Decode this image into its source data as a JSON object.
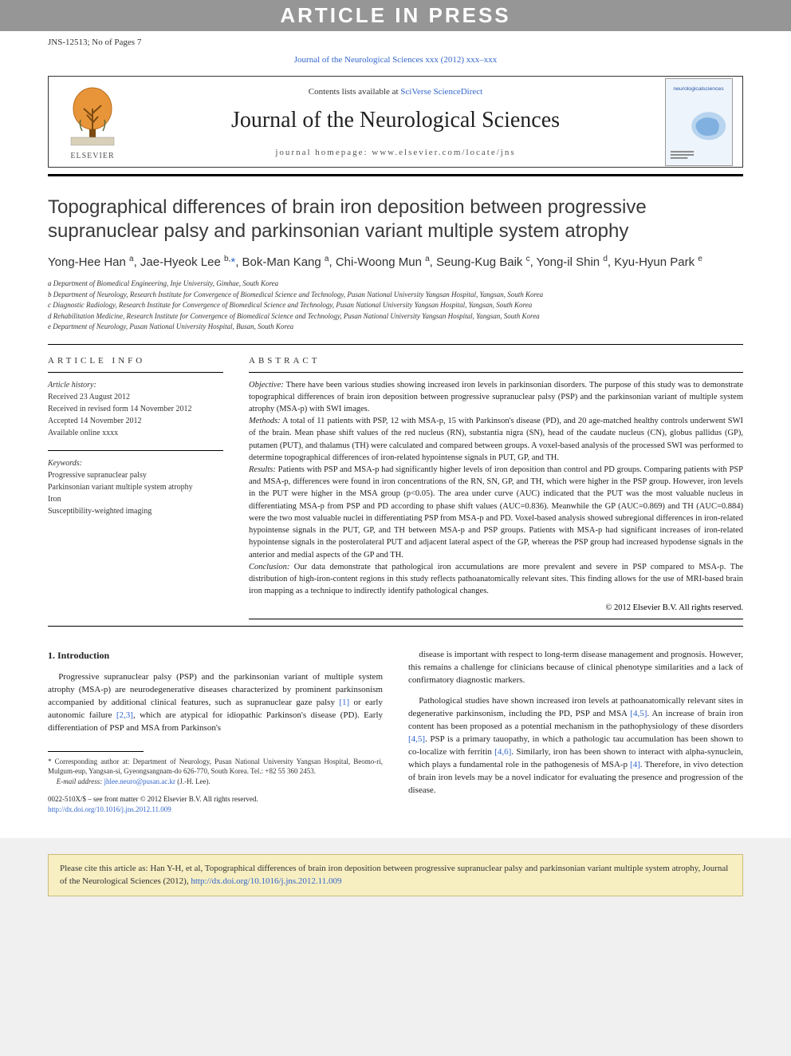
{
  "banner": "ARTICLE IN PRESS",
  "refline": {
    "left": "JNS-12513; No of Pages 7"
  },
  "journal_ref": "Journal of the Neurological Sciences xxx (2012) xxx–xxx",
  "masthead": {
    "publisher": "ELSEVIER",
    "contents_prefix": "Contents lists available at ",
    "contents_link": "SciVerse ScienceDirect",
    "journal_title": "Journal of the Neurological Sciences",
    "homepage": "journal homepage: www.elsevier.com/locate/jns",
    "logo_colors": {
      "tree_fill": "#e8953a",
      "tree_stroke": "#b86a1a",
      "banner": "#d8d0b8"
    },
    "cover_colors": {
      "bg": "#eef4fb",
      "accent": "#7fb0e0",
      "title_color": "#2a5aa8"
    },
    "cover_title": "neurologicalsciences"
  },
  "article": {
    "title": "Topographical differences of brain iron deposition between progressive supranuclear palsy and parkinsonian variant multiple system atrophy",
    "authors_html": "Yong-Hee Han <sup>a</sup>, Jae-Hyeok Lee <sup>b,</sup><span class='star'>*</span>, Bok-Man Kang <sup>a</sup>, Chi-Woong Mun <sup>a</sup>, Seung-Kug Baik <sup>c</sup>, Yong-il Shin <sup>d</sup>, Kyu-Hyun Park <sup>e</sup>",
    "affiliations": [
      "a Department of Biomedical Engineering, Inje University, Gimhae, South Korea",
      "b Department of Neurology, Research Institute for Convergence of Biomedical Science and Technology, Pusan National University Yangsan Hospital, Yangsan, South Korea",
      "c Diagnostic Radiology, Research Institute for Convergence of Biomedical Science and Technology, Pusan National University Yangsan Hospital, Yangsan, South Korea",
      "d Rehabilitation Medicine, Research Institute for Convergence of Biomedical Science and Technology, Pusan National University Yangsan Hospital, Yangsan, South Korea",
      "e Department of Neurology, Pusan National University Hospital, Busan, South Korea"
    ]
  },
  "info": {
    "head": "ARTICLE INFO",
    "history_label": "Article history:",
    "history": [
      "Received 23 August 2012",
      "Received in revised form 14 November 2012",
      "Accepted 14 November 2012",
      "Available online xxxx"
    ],
    "keywords_label": "Keywords:",
    "keywords": [
      "Progressive supranuclear palsy",
      "Parkinsonian variant multiple system atrophy",
      "Iron",
      "Susceptibility-weighted imaging"
    ]
  },
  "abstract": {
    "head": "ABSTRACT",
    "objective_label": "Objective:",
    "objective": " There have been various studies showing increased iron levels in parkinsonian disorders. The purpose of this study was to demonstrate topographical differences of brain iron deposition between progressive supranuclear palsy (PSP) and the parkinsonian variant of multiple system atrophy (MSA-p) with SWI images.",
    "methods_label": "Methods:",
    "methods": " A total of 11 patients with PSP, 12 with MSA-p, 15 with Parkinson's disease (PD), and 20 age-matched healthy controls underwent SWI of the brain. Mean phase shift values of the red nucleus (RN), substantia nigra (SN), head of the caudate nucleus (CN), globus pallidus (GP), putamen (PUT), and thalamus (TH) were calculated and compared between groups. A voxel-based analysis of the processed SWI was performed to determine topographical differences of iron-related hypointense signals in PUT, GP, and TH.",
    "results_label": "Results:",
    "results": " Patients with PSP and MSA-p had significantly higher levels of iron deposition than control and PD groups. Comparing patients with PSP and MSA-p, differences were found in iron concentrations of the RN, SN, GP, and TH, which were higher in the PSP group. However, iron levels in the PUT were higher in the MSA group (p<0.05). The area under curve (AUC) indicated that the PUT was the most valuable nucleus in differentiating MSA-p from PSP and PD according to phase shift values (AUC=0.836). Meanwhile the GP (AUC=0.869) and TH (AUC=0.884) were the two most valuable nuclei in differentiating PSP from MSA-p and PD. Voxel-based analysis showed subregional differences in iron-related hypointense signals in the PUT, GP, and TH between MSA-p and PSP groups. Patients with MSA-p had significant increases of iron-related hypointense signals in the posterolateral PUT and adjacent lateral aspect of the GP, whereas the PSP group had increased hypodense signals in the anterior and medial aspects of the GP and TH.",
    "conclusion_label": "Conclusion:",
    "conclusion": " Our data demonstrate that pathological iron accumulations are more prevalent and severe in PSP compared to MSA-p. The distribution of high-iron-content regions in this study reflects pathoanatomically relevant sites. This finding allows for the use of MRI-based brain iron mapping as a technique to indirectly identify pathological changes.",
    "copyright": "© 2012 Elsevier B.V. All rights reserved."
  },
  "body": {
    "intro_head": "1. Introduction",
    "left_p1_a": "Progressive supranuclear palsy (PSP) and the parkinsonian variant of multiple system atrophy (MSA-p) are neurodegenerative diseases characterized by prominent parkinsonism accompanied by additional clinical features, such as supranuclear gaze palsy ",
    "left_cite1": "[1]",
    "left_p1_b": " or early autonomic failure ",
    "left_cite2": "[2,3]",
    "left_p1_c": ", which are atypical for idiopathic Parkinson's disease (PD). Early differentiation of PSP and MSA from Parkinson's",
    "right_p1": "disease is important with respect to long-term disease management and prognosis. However, this remains a challenge for clinicians because of clinical phenotype similarities and a lack of confirmatory diagnostic markers.",
    "right_p2_a": "Pathological studies have shown increased iron levels at pathoanatomically relevant sites in degenerative parkinsonism, including the PD, PSP and MSA ",
    "right_cite3": "[4,5]",
    "right_p2_b": ". An increase of brain iron content has been proposed as a potential mechanism in the pathophysiology of these disorders ",
    "right_cite4": "[4,5]",
    "right_p2_c": ". PSP is a primary tauopathy, in which a pathologic tau accumulation has been shown to co-localize with ferritin ",
    "right_cite5": "[4,6]",
    "right_p2_d": ". Similarly, iron has been shown to interact with alpha-synuclein, which plays a fundamental role in the pathogenesis of MSA-p ",
    "right_cite6": "[4]",
    "right_p2_e": ". Therefore, in vivo detection of brain iron levels may be a novel indicator for evaluating the presence and progression of the disease."
  },
  "footnotes": {
    "corr_a": "* Corresponding author at: Department of Neurology, Pusan National University Yangsan Hospital, Beomo-ri, Mulgum-eup, Yangsan-si, Gyeongsangnam-do 626-770, South Korea. Tel.: +82 55 360 2453.",
    "email_label": "E-mail address: ",
    "email": "jhlee.neuro@pusan.ac.kr",
    "email_suffix": " (J.-H. Lee).",
    "issn": "0022-510X/$ – see front matter © 2012 Elsevier B.V. All rights reserved.",
    "doi": "http://dx.doi.org/10.1016/j.jns.2012.11.009"
  },
  "citebox": {
    "text_a": "Please cite this article as: Han Y-H, et al, Topographical differences of brain iron deposition between progressive supranuclear palsy and parkinsonian variant multiple system atrophy, Journal of the Neurological Sciences (2012), ",
    "link": "http://dx.doi.org/10.1016/j.jns.2012.11.009"
  },
  "colors": {
    "banner_bg": "#969696",
    "link": "#3366cc",
    "citebox_bg": "#f7eec2",
    "citebox_border": "#c9bc7a"
  }
}
